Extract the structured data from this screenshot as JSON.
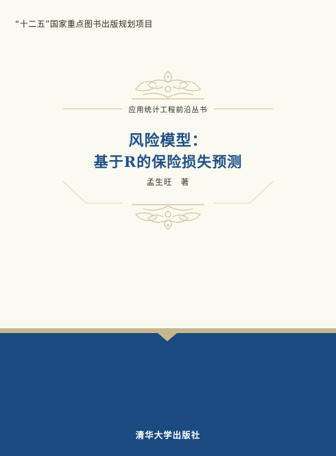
{
  "cover": {
    "project_line": "“十二五”国家重点图书出版规划项目",
    "series": "应用统计工程前沿丛书",
    "title_line1": "风险模型：",
    "title_line2": "基于R的保险损失预测",
    "author": "孟生旺　著",
    "publisher": "清华大学出版社"
  },
  "colors": {
    "background": "#fbfaf0",
    "title": "#1e4f86",
    "band": "#c7b78f",
    "panel": "#1a4a7f",
    "ornament": "#d6c8a3"
  }
}
